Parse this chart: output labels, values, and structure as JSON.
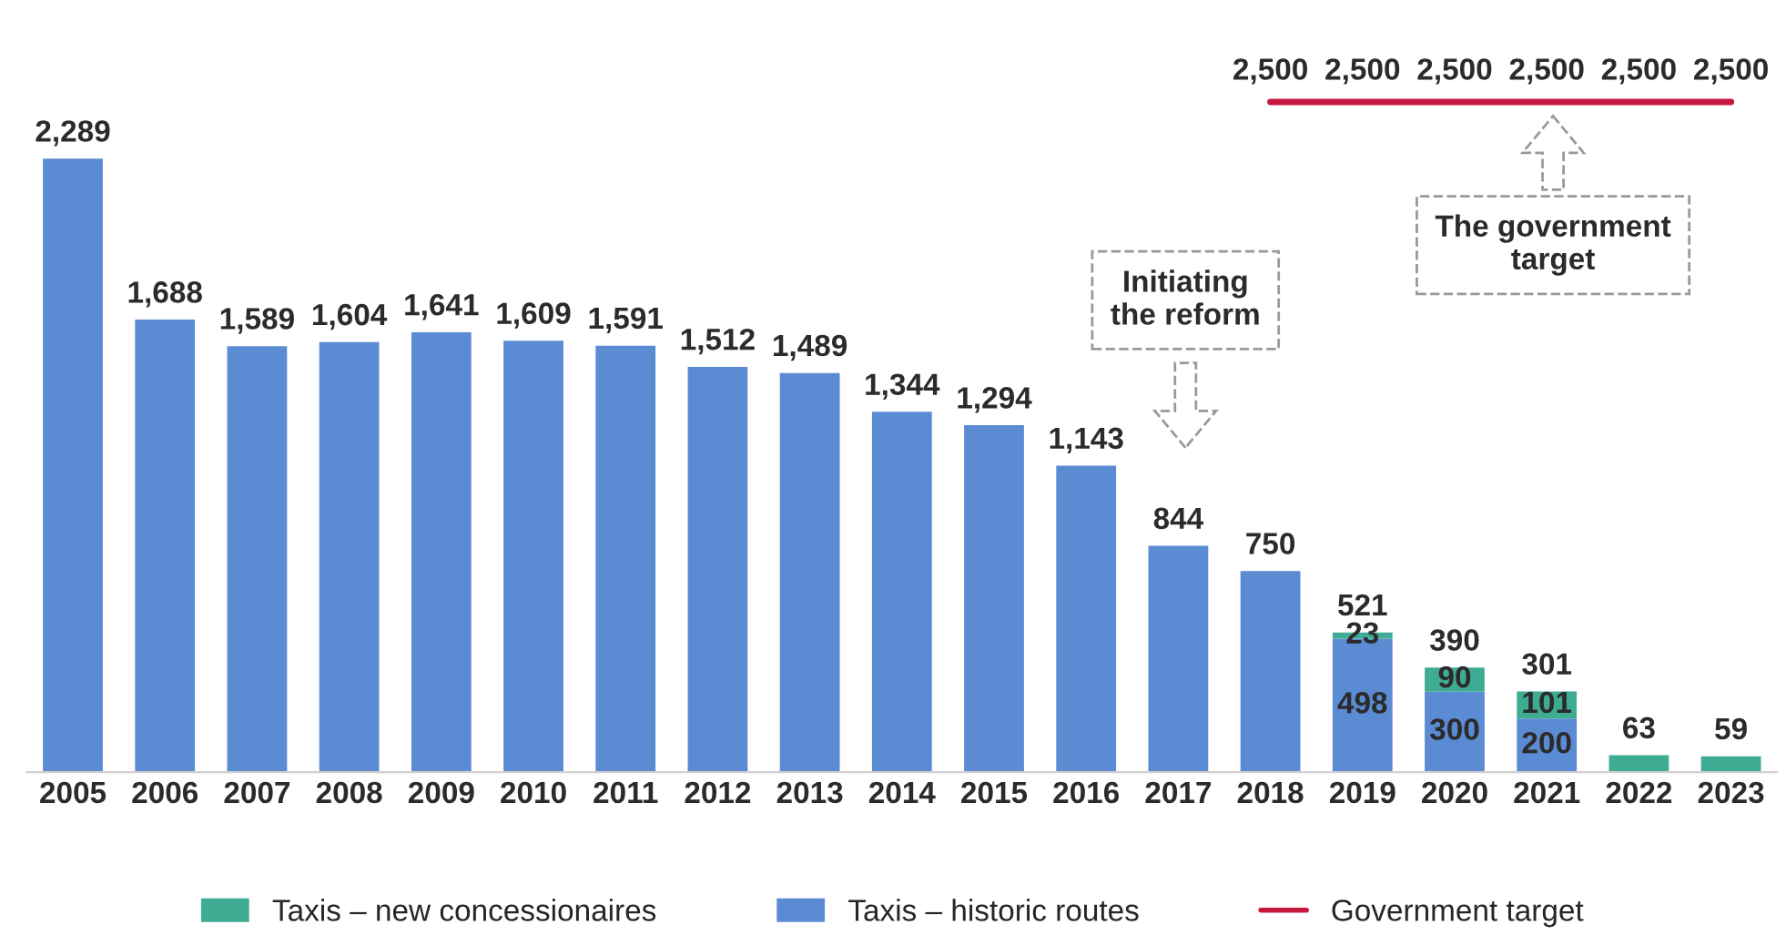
{
  "chart_data": {
    "type": "bar",
    "stacked": true,
    "categories": [
      "2005",
      "2006",
      "2007",
      "2008",
      "2009",
      "2010",
      "2011",
      "2012",
      "2013",
      "2014",
      "2015",
      "2016",
      "2017",
      "2018",
      "2019",
      "2020",
      "2021",
      "2022",
      "2023"
    ],
    "series": [
      {
        "name": "Taxis – historic routes",
        "color": "#5b8bd3",
        "values": [
          2289,
          1688,
          1589,
          1604,
          1641,
          1609,
          1591,
          1512,
          1489,
          1344,
          1294,
          1143,
          844,
          750,
          498,
          300,
          200,
          null,
          null
        ],
        "value_labels": [
          "2,289",
          "1,688",
          "1,589",
          "1,604",
          "1,641",
          "1,609",
          "1,591",
          "1,512",
          "1,489",
          "1,344",
          "1,294",
          "1,143",
          "844",
          "750",
          "498",
          "300",
          "200",
          null,
          null
        ]
      },
      {
        "name": "Taxis – new concessionaires",
        "color": "#40ab93",
        "values": [
          null,
          null,
          null,
          null,
          null,
          null,
          null,
          null,
          null,
          null,
          null,
          null,
          null,
          null,
          23,
          90,
          101,
          63,
          59
        ],
        "value_labels": [
          null,
          null,
          null,
          null,
          null,
          null,
          null,
          null,
          null,
          null,
          null,
          null,
          null,
          null,
          "23",
          "90",
          "101",
          "63",
          "59"
        ]
      },
      {
        "name": "Government target",
        "type": "line",
        "color": "#c8173f",
        "values": [
          null,
          null,
          null,
          null,
          null,
          null,
          null,
          null,
          null,
          null,
          null,
          null,
          null,
          2500,
          2500,
          2500,
          2500,
          2500,
          2500
        ],
        "value_labels": [
          null,
          null,
          null,
          null,
          null,
          null,
          null,
          null,
          null,
          null,
          null,
          null,
          null,
          "2,500",
          "2,500",
          "2,500",
          "2,500",
          "2,500",
          "2,500"
        ]
      }
    ],
    "totals": [
      null,
      null,
      null,
      null,
      null,
      null,
      null,
      null,
      null,
      null,
      null,
      null,
      null,
      null,
      "521",
      "390",
      "301",
      null,
      null
    ],
    "tick_labels": "x",
    "legend": "bottom",
    "annotations": [
      "Initiating\nthe reform",
      "The government\ntarget"
    ]
  }
}
